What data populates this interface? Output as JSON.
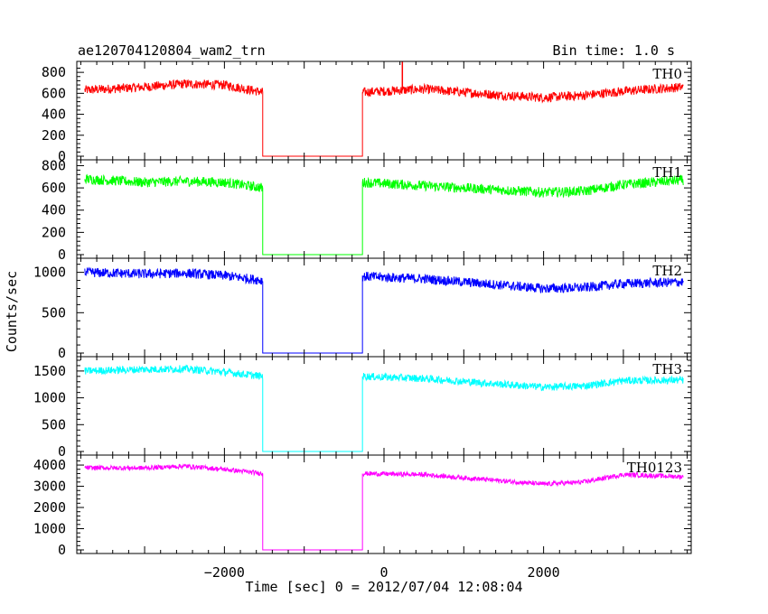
{
  "header": {
    "title": "ae120704120804_wam2_trn",
    "bin_time": "Bin time: 1.0 s"
  },
  "chart_data": {
    "type": "line",
    "xlabel": "Time [sec] 0 = 2012/07/04 12:08:04",
    "ylabel": "Counts/sec",
    "xlim": [
      -3850,
      3850
    ],
    "x_ticks": [
      -2000,
      0,
      2000
    ],
    "x_tick_labels": [
      "−2000",
      "0",
      "2000"
    ],
    "data_gap": [
      -1520,
      -270
    ],
    "grid": false,
    "panels": [
      {
        "name": "TH0",
        "color": "#ff0000",
        "ylim": [
          0,
          870
        ],
        "y_ticks": [
          0,
          200,
          400,
          600,
          800
        ],
        "noise": 45,
        "spike": {
          "x": 230,
          "y": 870
        },
        "x": [
          -3750,
          -3000,
          -2500,
          -2000,
          -1520,
          -270,
          500,
          1500,
          2000,
          2500,
          3000,
          3750
        ],
        "y": [
          630,
          660,
          690,
          680,
          610,
          610,
          640,
          580,
          560,
          580,
          620,
          660
        ]
      },
      {
        "name": "TH1",
        "color": "#00ff00",
        "ylim": [
          0,
          820
        ],
        "y_ticks": [
          0,
          200,
          400,
          600,
          800
        ],
        "noise": 45,
        "x": [
          -3750,
          -3000,
          -2500,
          -2000,
          -1520,
          -270,
          500,
          1500,
          2000,
          2500,
          3000,
          3750
        ],
        "y": [
          680,
          650,
          660,
          650,
          600,
          650,
          620,
          580,
          560,
          570,
          630,
          670
        ]
      },
      {
        "name": "TH2",
        "color": "#0000ff",
        "ylim": [
          0,
          1130
        ],
        "y_ticks": [
          0,
          500,
          1000
        ],
        "noise": 60,
        "x": [
          -3750,
          -3000,
          -2500,
          -2000,
          -1520,
          -270,
          500,
          1500,
          2000,
          2500,
          3000,
          3750
        ],
        "y": [
          1000,
          980,
          990,
          960,
          900,
          950,
          920,
          840,
          800,
          810,
          860,
          880
        ]
      },
      {
        "name": "TH3",
        "color": "#00ffff",
        "ylim": [
          0,
          1700
        ],
        "y_ticks": [
          0,
          500,
          1000,
          1500
        ],
        "noise": 70,
        "x": [
          -3750,
          -3000,
          -2500,
          -2000,
          -1520,
          -270,
          500,
          1500,
          2000,
          2500,
          3000,
          3750
        ],
        "y": [
          1500,
          1530,
          1540,
          1480,
          1400,
          1400,
          1360,
          1250,
          1200,
          1220,
          1320,
          1330
        ]
      },
      {
        "name": "TH0123",
        "color": "#ff00ff",
        "ylim": [
          0,
          4300
        ],
        "y_ticks": [
          0,
          1000,
          2000,
          3000,
          4000
        ],
        "noise": 110,
        "x": [
          -3750,
          -3000,
          -2500,
          -2000,
          -1520,
          -270,
          500,
          1500,
          2000,
          2500,
          3000,
          3750
        ],
        "y": [
          3870,
          3860,
          3950,
          3800,
          3600,
          3600,
          3550,
          3250,
          3100,
          3200,
          3550,
          3450
        ]
      }
    ]
  }
}
